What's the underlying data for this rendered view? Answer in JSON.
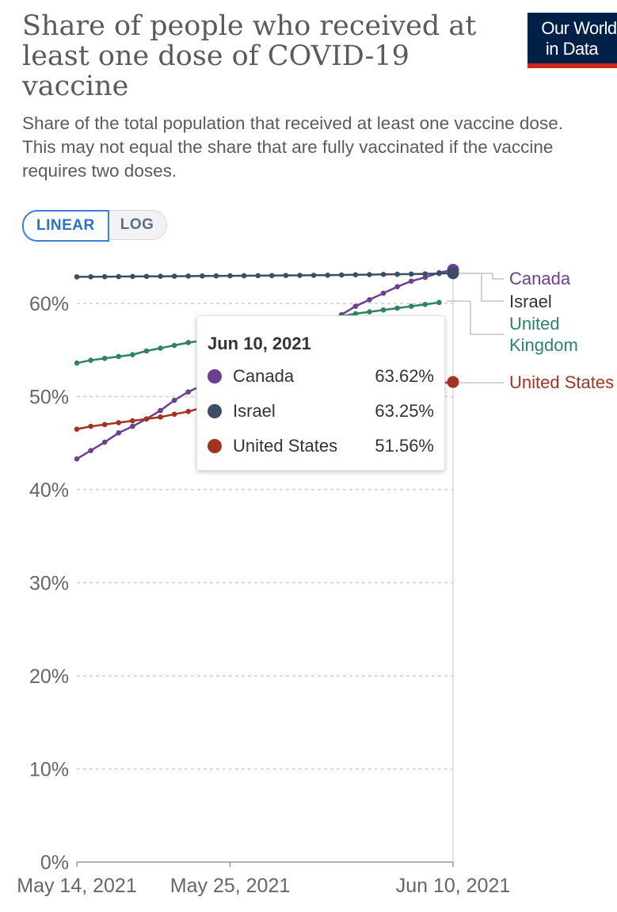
{
  "header": {
    "title": "Share of people who received at least one dose of COVID-19 vaccine",
    "subtitle": "Share of the total population that received at least one vaccine dose. This may not equal the share that are fully vaccinated if the vaccine requires two doses.",
    "logo_line1": "Our World",
    "logo_line2": "in Data"
  },
  "controls": {
    "linear_label": "LINEAR",
    "log_label": "LOG",
    "active": "LINEAR"
  },
  "tooltip": {
    "date": "Jun 10, 2021",
    "rows": [
      {
        "name": "Canada",
        "value": "63.62%",
        "color": "#6d3e91"
      },
      {
        "name": "Israel",
        "value": "63.25%",
        "color": "#3c4e66"
      },
      {
        "name": "United States",
        "value": "51.56%",
        "color": "#a2331f"
      }
    ]
  },
  "chart_data": {
    "type": "line",
    "scale": "linear",
    "grid": true,
    "x_start": "2021-05-14",
    "x_end": "2021-06-10",
    "x_ticks": [
      "May 14, 2021",
      "May 25, 2021",
      "Jun 10, 2021"
    ],
    "y_ticks": [
      "0%",
      "10%",
      "20%",
      "30%",
      "40%",
      "50%",
      "60%"
    ],
    "ylim": [
      0,
      65
    ],
    "hover_date": "Jun 10, 2021",
    "series": [
      {
        "name": "Canada",
        "color": "#6d3e91",
        "label_lines": [
          "Canada"
        ],
        "x": [
          "2021-05-14",
          "2021-05-15",
          "2021-05-16",
          "2021-05-17",
          "2021-05-18",
          "2021-05-19",
          "2021-05-20",
          "2021-05-21",
          "2021-05-22",
          "2021-05-23",
          "2021-05-24",
          "2021-05-25",
          "2021-05-26",
          "2021-05-27",
          "2021-05-28",
          "2021-05-29",
          "2021-05-30",
          "2021-05-31",
          "2021-06-01",
          "2021-06-02",
          "2021-06-03",
          "2021-06-04",
          "2021-06-05",
          "2021-06-06",
          "2021-06-07",
          "2021-06-08",
          "2021-06-09",
          "2021-06-10"
        ],
        "y": [
          43.3,
          44.2,
          45.1,
          46.1,
          46.8,
          47.6,
          48.5,
          49.6,
          50.5,
          51.2,
          51.8,
          52.7,
          53.5,
          54.3,
          55.2,
          56.0,
          56.7,
          57.3,
          58.0,
          58.8,
          59.7,
          60.4,
          61.1,
          61.8,
          62.4,
          62.8,
          63.3,
          63.62
        ]
      },
      {
        "name": "Israel",
        "color": "#3c4e66",
        "label_lines": [
          "Israel"
        ],
        "x": [
          "2021-05-14",
          "2021-05-15",
          "2021-05-16",
          "2021-05-17",
          "2021-05-18",
          "2021-05-19",
          "2021-05-20",
          "2021-05-21",
          "2021-05-22",
          "2021-05-23",
          "2021-05-24",
          "2021-05-25",
          "2021-05-26",
          "2021-05-27",
          "2021-05-28",
          "2021-05-29",
          "2021-05-30",
          "2021-05-31",
          "2021-06-01",
          "2021-06-02",
          "2021-06-03",
          "2021-06-04",
          "2021-06-05",
          "2021-06-06",
          "2021-06-07",
          "2021-06-08",
          "2021-06-09",
          "2021-06-10"
        ],
        "y": [
          62.86,
          62.87,
          62.88,
          62.89,
          62.9,
          62.91,
          62.92,
          62.93,
          62.94,
          62.95,
          62.96,
          62.97,
          62.98,
          62.99,
          63.0,
          63.01,
          63.02,
          63.03,
          63.04,
          63.06,
          63.08,
          63.1,
          63.12,
          63.14,
          63.16,
          63.18,
          63.22,
          63.25
        ]
      },
      {
        "name": "United Kingdom",
        "color": "#2c8465",
        "label_lines": [
          "United",
          "Kingdom"
        ],
        "x": [
          "2021-05-14",
          "2021-05-15",
          "2021-05-16",
          "2021-05-17",
          "2021-05-18",
          "2021-05-19",
          "2021-05-20",
          "2021-05-21",
          "2021-05-22",
          "2021-05-23",
          "2021-05-24",
          "2021-05-25",
          "2021-05-26",
          "2021-05-27",
          "2021-05-28",
          "2021-05-29",
          "2021-05-30",
          "2021-05-31",
          "2021-06-01",
          "2021-06-02",
          "2021-06-03",
          "2021-06-04",
          "2021-06-05",
          "2021-06-06",
          "2021-06-07",
          "2021-06-08",
          "2021-06-09"
        ],
        "y": [
          53.6,
          53.9,
          54.1,
          54.3,
          54.5,
          54.9,
          55.2,
          55.5,
          55.8,
          56.0,
          56.3,
          56.6,
          56.8,
          57.0,
          57.3,
          57.6,
          57.8,
          58.0,
          58.3,
          58.6,
          58.9,
          59.1,
          59.3,
          59.5,
          59.7,
          59.9,
          60.1
        ]
      },
      {
        "name": "United States",
        "color": "#a2331f",
        "label_lines": [
          "United States"
        ],
        "x": [
          "2021-05-14",
          "2021-05-15",
          "2021-05-16",
          "2021-05-17",
          "2021-05-18",
          "2021-05-19",
          "2021-05-20",
          "2021-05-21",
          "2021-05-22",
          "2021-05-23",
          "2021-05-24",
          "2021-05-25",
          "2021-05-26",
          "2021-05-27",
          "2021-05-28",
          "2021-05-29",
          "2021-05-30",
          "2021-05-31",
          "2021-06-01",
          "2021-06-02",
          "2021-06-03",
          "2021-06-04",
          "2021-06-05",
          "2021-06-06",
          "2021-06-07",
          "2021-06-08",
          "2021-06-09",
          "2021-06-10"
        ],
        "y": [
          46.5,
          46.8,
          47.0,
          47.2,
          47.4,
          47.6,
          47.8,
          48.1,
          48.4,
          48.8,
          49.0,
          49.2,
          49.4,
          49.6,
          49.8,
          50.0,
          50.1,
          50.3,
          50.5,
          50.6,
          50.8,
          50.9,
          51.0,
          51.1,
          51.2,
          51.3,
          51.45,
          51.56
        ]
      }
    ]
  }
}
